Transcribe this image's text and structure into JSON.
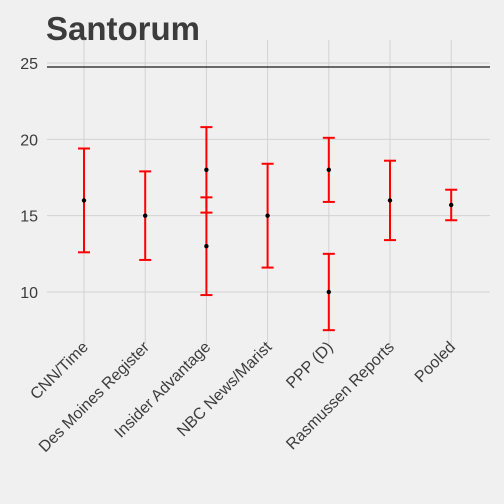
{
  "chart_data": {
    "type": "errorbar",
    "title": "Santorum",
    "xlabel": "",
    "ylabel": "",
    "categories": [
      "CNN/Time",
      "Des Moines Register",
      "Insider Advantage",
      "NBC News/Marist",
      "PPP (D)",
      "Rasmussen Reports",
      "Pooled"
    ],
    "points": [
      {
        "category": "CNN/Time",
        "value": 16,
        "low": 12.6,
        "high": 19.4
      },
      {
        "category": "Des Moines Register",
        "value": 15,
        "low": 12.1,
        "high": 17.9
      },
      {
        "category": "Insider Advantage",
        "value": 18,
        "low": 15.2,
        "high": 20.8
      },
      {
        "category": "Insider Advantage",
        "value": 13,
        "low": 9.8,
        "high": 16.2
      },
      {
        "category": "NBC News/Marist",
        "value": 15,
        "low": 11.6,
        "high": 18.4
      },
      {
        "category": "PPP (D)",
        "value": 18,
        "low": 15.9,
        "high": 20.1
      },
      {
        "category": "PPP (D)",
        "value": 10,
        "low": 7.5,
        "high": 12.5
      },
      {
        "category": "Rasmussen Reports",
        "value": 16,
        "low": 13.4,
        "high": 18.6
      },
      {
        "category": "Pooled",
        "value": 15.7,
        "low": 14.7,
        "high": 16.7
      }
    ],
    "yticks": [
      10,
      15,
      20,
      25
    ],
    "ylim": [
      7,
      26
    ],
    "reference_line": 25,
    "grid": true,
    "colors": {
      "background": "#F0F0F0",
      "grid": "#D2D2D2",
      "errorbar": "#FF0000",
      "point": "#000000",
      "reference_line": "#3C3C3C",
      "text": "#3C3C3C"
    }
  }
}
